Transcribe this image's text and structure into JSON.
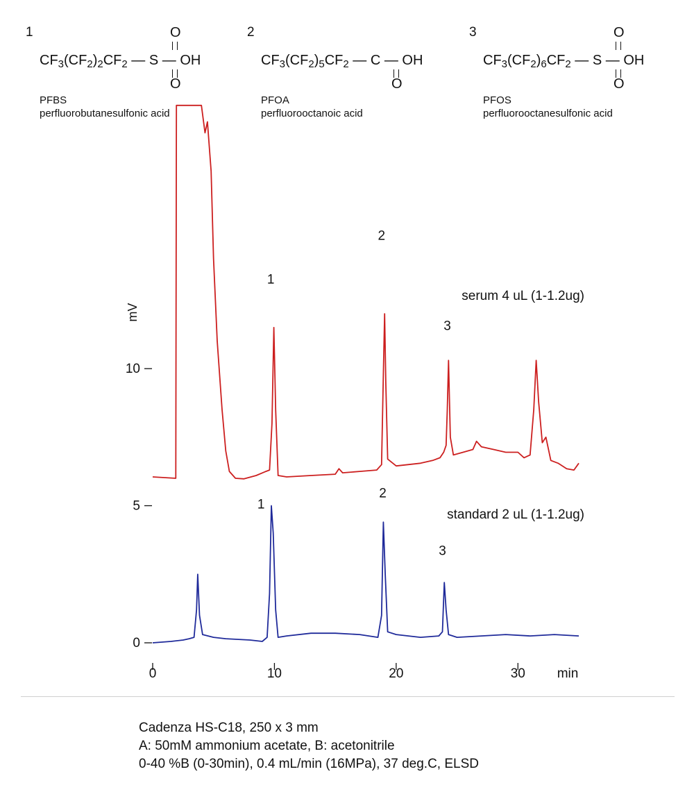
{
  "compounds": [
    {
      "number": "1",
      "formula_prefix": "CF",
      "formula_sub1": "3",
      "formula_mid": "(CF",
      "formula_sub2": "2",
      "formula_post": ")",
      "formula_sub3": "2",
      "formula_tail": "CF",
      "formula_sub4": "2",
      "formula_group": "S",
      "formula_oh": "OH",
      "oxygen": "O",
      "abbr": "PFBS",
      "name": "perfluorobutanesulfonic acid"
    },
    {
      "number": "2",
      "formula_prefix": "CF",
      "formula_sub1": "3",
      "formula_mid": "(CF",
      "formula_sub2": "2",
      "formula_post": ")",
      "formula_sub3": "5",
      "formula_tail": "CF",
      "formula_sub4": "2",
      "formula_group": "C",
      "formula_oh": "OH",
      "oxygen": "O",
      "abbr": "PFOA",
      "name": "perfluorooctanoic acid"
    },
    {
      "number": "3",
      "formula_prefix": "CF",
      "formula_sub1": "3",
      "formula_mid": "(CF",
      "formula_sub2": "2",
      "formula_post": ")",
      "formula_sub3": "6",
      "formula_tail": "CF",
      "formula_sub4": "2",
      "formula_group": "S",
      "formula_oh": "OH",
      "oxygen": "O",
      "abbr": "PFOS",
      "name": "perfluorooctanesulfonic acid"
    }
  ],
  "chart_data": {
    "type": "line",
    "xlabel": "min",
    "ylabel": "mV",
    "xlim": [
      0,
      35
    ],
    "ylim": [
      0,
      20
    ],
    "x_ticks": [
      0,
      10,
      20,
      30
    ],
    "x_tick_labels": [
      "0",
      "10",
      "20",
      "30"
    ],
    "y_ticks": [
      0,
      5,
      10
    ],
    "y_tick_labels": [
      "0",
      "5",
      "10"
    ],
    "series": [
      {
        "name": "serum 4 uL (1-1.2ug)",
        "color": "#cc1f1f",
        "baseline": 6.0,
        "points": [
          [
            0,
            6.05
          ],
          [
            1.9,
            6.0
          ],
          [
            1.95,
            19.6
          ],
          [
            4.0,
            19.6
          ],
          [
            4.3,
            18.6
          ],
          [
            4.5,
            19.0
          ],
          [
            4.8,
            17.2
          ],
          [
            5.0,
            14.0
          ],
          [
            5.3,
            11.0
          ],
          [
            5.7,
            8.5
          ],
          [
            6.0,
            7.0
          ],
          [
            6.3,
            6.25
          ],
          [
            6.8,
            6.0
          ],
          [
            7.5,
            5.98
          ],
          [
            8.5,
            6.1
          ],
          [
            9.3,
            6.25
          ],
          [
            9.6,
            6.3
          ],
          [
            9.8,
            8.0
          ],
          [
            9.95,
            11.5
          ],
          [
            10.1,
            8.5
          ],
          [
            10.3,
            6.1
          ],
          [
            11.0,
            6.05
          ],
          [
            13.0,
            6.1
          ],
          [
            15.0,
            6.15
          ],
          [
            15.3,
            6.35
          ],
          [
            15.6,
            6.2
          ],
          [
            17.0,
            6.25
          ],
          [
            18.4,
            6.3
          ],
          [
            18.8,
            6.5
          ],
          [
            18.95,
            9.8
          ],
          [
            19.05,
            12.0
          ],
          [
            19.15,
            9.5
          ],
          [
            19.3,
            6.7
          ],
          [
            20.0,
            6.45
          ],
          [
            22.0,
            6.55
          ],
          [
            23.0,
            6.65
          ],
          [
            23.6,
            6.75
          ],
          [
            23.9,
            6.95
          ],
          [
            24.1,
            7.2
          ],
          [
            24.2,
            8.5
          ],
          [
            24.3,
            10.3
          ],
          [
            24.45,
            7.5
          ],
          [
            24.7,
            6.85
          ],
          [
            25.5,
            6.95
          ],
          [
            26.3,
            7.05
          ],
          [
            26.6,
            7.35
          ],
          [
            27.0,
            7.15
          ],
          [
            28.0,
            7.05
          ],
          [
            29.0,
            6.95
          ],
          [
            30.0,
            6.95
          ],
          [
            30.5,
            6.75
          ],
          [
            31.0,
            6.85
          ],
          [
            31.3,
            8.5
          ],
          [
            31.5,
            10.3
          ],
          [
            31.7,
            8.8
          ],
          [
            32.0,
            7.3
          ],
          [
            32.3,
            7.5
          ],
          [
            32.7,
            6.65
          ],
          [
            33.3,
            6.55
          ],
          [
            34.0,
            6.35
          ],
          [
            34.6,
            6.3
          ],
          [
            35.0,
            6.55
          ]
        ]
      },
      {
        "name": "standard 2 uL (1-1.2ug)",
        "color": "#1f2a9a",
        "baseline": 0.0,
        "points": [
          [
            0,
            0.0
          ],
          [
            1.5,
            0.05
          ],
          [
            2.5,
            0.1
          ],
          [
            3.0,
            0.15
          ],
          [
            3.4,
            0.2
          ],
          [
            3.6,
            1.2
          ],
          [
            3.7,
            2.5
          ],
          [
            3.85,
            1.0
          ],
          [
            4.1,
            0.3
          ],
          [
            5.0,
            0.2
          ],
          [
            6.0,
            0.15
          ],
          [
            8.0,
            0.1
          ],
          [
            9.0,
            0.05
          ],
          [
            9.4,
            0.2
          ],
          [
            9.6,
            1.8
          ],
          [
            9.75,
            5.0
          ],
          [
            9.9,
            4.0
          ],
          [
            10.1,
            1.2
          ],
          [
            10.3,
            0.2
          ],
          [
            11.0,
            0.25
          ],
          [
            13.0,
            0.35
          ],
          [
            15.0,
            0.35
          ],
          [
            17.0,
            0.3
          ],
          [
            18.5,
            0.2
          ],
          [
            18.8,
            1.0
          ],
          [
            18.95,
            4.4
          ],
          [
            19.1,
            2.5
          ],
          [
            19.3,
            0.4
          ],
          [
            20.0,
            0.3
          ],
          [
            22.0,
            0.2
          ],
          [
            23.5,
            0.25
          ],
          [
            23.8,
            0.4
          ],
          [
            23.95,
            2.2
          ],
          [
            24.1,
            1.2
          ],
          [
            24.3,
            0.3
          ],
          [
            25.0,
            0.2
          ],
          [
            27.0,
            0.25
          ],
          [
            29.0,
            0.3
          ],
          [
            31.0,
            0.25
          ],
          [
            33.0,
            0.3
          ],
          [
            35.0,
            0.25
          ]
        ]
      }
    ],
    "peak_labels": [
      {
        "series": 0,
        "text": "1",
        "x": 9.7,
        "y": 13.1
      },
      {
        "series": 0,
        "text": "2",
        "x": 18.8,
        "y": 14.7
      },
      {
        "series": 0,
        "text": "3",
        "x": 24.2,
        "y": 11.4
      },
      {
        "series": 1,
        "text": "1",
        "x": 8.9,
        "y": 4.9
      },
      {
        "series": 1,
        "text": "2",
        "x": 18.9,
        "y": 5.3
      },
      {
        "series": 1,
        "text": "3",
        "x": 23.8,
        "y": 3.2
      }
    ]
  },
  "conditions": [
    "Cadenza HS-C18, 250 x 3 mm",
    "A: 50mM ammonium acetate, B: acetonitrile",
    "0-40 %B (0-30min), 0.4 mL/min (16MPa), 37 deg.C, ELSD"
  ]
}
